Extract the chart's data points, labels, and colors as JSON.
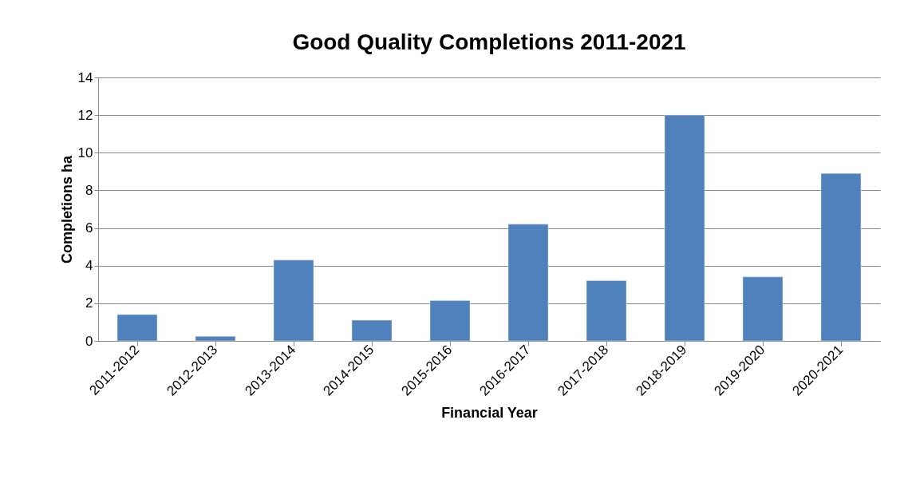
{
  "chart_data": {
    "type": "bar",
    "title": "Good Quality Completions 2011-2021",
    "xlabel": "Financial Year",
    "ylabel": "Completions ha",
    "categories": [
      "2011-2012",
      "2012-2013",
      "2013-2014",
      "2014-2015",
      "2015-2016",
      "2016-2017",
      "2017-2018",
      "2018-2019",
      "2019-2020",
      "2020-2021"
    ],
    "values": [
      1.4,
      0.24,
      4.3,
      1.1,
      2.14,
      6.2,
      3.2,
      12.0,
      3.4,
      8.9
    ],
    "color": "#4f81bd",
    "ylim": [
      0,
      14
    ],
    "yticks": [
      0,
      2,
      4,
      6,
      8,
      10,
      12,
      14
    ],
    "grid": "y"
  }
}
